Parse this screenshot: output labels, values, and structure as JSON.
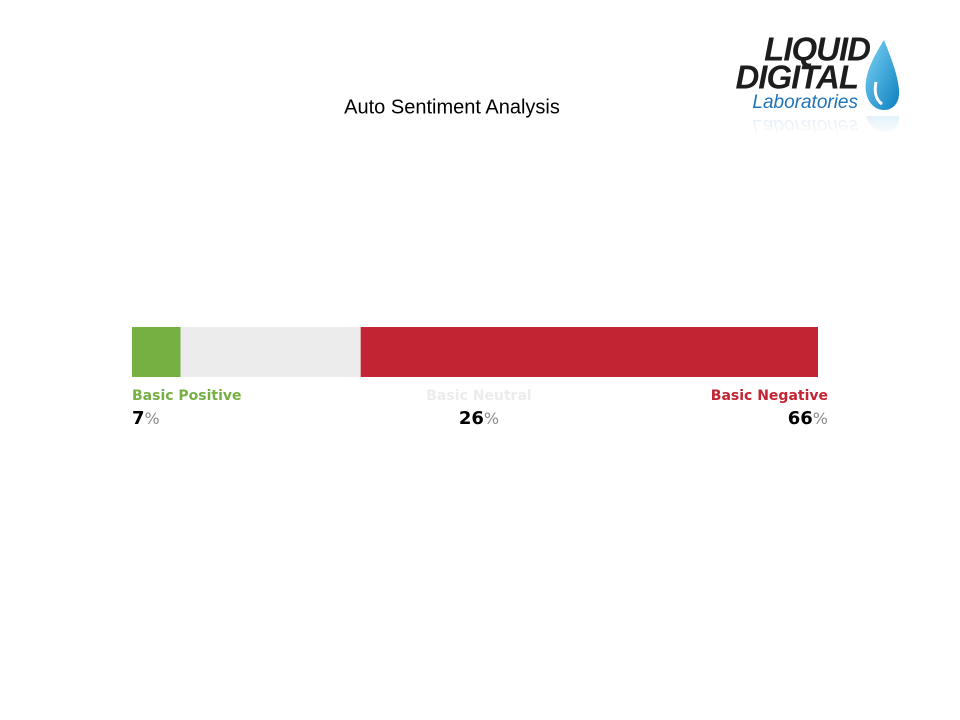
{
  "logo": {
    "line1": "LIQUID",
    "line2": "DIGITAL",
    "line3": "Laboratories"
  },
  "chart_data": {
    "type": "stacked_bar",
    "title": "Auto Sentiment Analysis",
    "unit": "%",
    "series": [
      {
        "name": "Basic Positive",
        "color": "#76b043",
        "values": [
          7
        ]
      },
      {
        "name": "Basic Neutral",
        "color": "#ececec",
        "values": [
          26
        ]
      },
      {
        "name": "Basic Negative",
        "color": "#c22433",
        "values": [
          66
        ]
      }
    ]
  }
}
